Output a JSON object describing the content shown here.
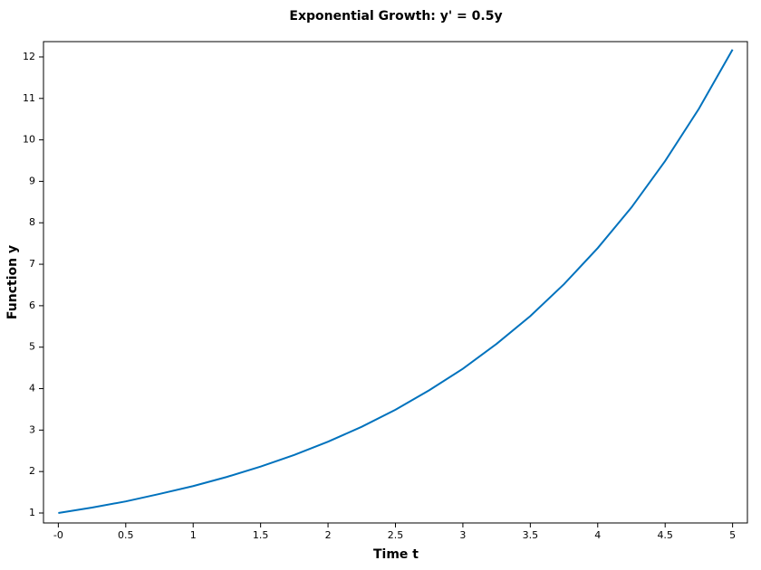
{
  "chart_data": {
    "type": "line",
    "title": "Exponential Growth: y' = 0.5y",
    "x_label": "Time t",
    "y_label": "Function y",
    "x": [
      0,
      0.25,
      0.5,
      0.75,
      1,
      1.25,
      1.5,
      1.75,
      2,
      2.25,
      2.5,
      2.75,
      3,
      3.25,
      3.5,
      3.75,
      4,
      4.25,
      4.5,
      4.75,
      5
    ],
    "series": [
      {
        "name": "y",
        "color": "#0072bd",
        "values": [
          1,
          1.13,
          1.28,
          1.46,
          1.65,
          1.87,
          2.12,
          2.4,
          2.72,
          3.08,
          3.49,
          3.96,
          4.48,
          5.08,
          5.75,
          6.52,
          7.39,
          8.37,
          9.49,
          10.75,
          12.18
        ]
      }
    ],
    "xlim": [
      -0.11,
      5.11
    ],
    "ylim": [
      0.76,
      12.37
    ],
    "xticks": [
      {
        "value": 0,
        "label": "-0"
      },
      0.5,
      1,
      1.5,
      2,
      2.5,
      3,
      3.5,
      4,
      4.5,
      5
    ],
    "yticks": [
      1,
      2,
      3,
      4,
      5,
      6,
      7,
      8,
      9,
      10,
      11,
      12
    ],
    "grid": false
  }
}
